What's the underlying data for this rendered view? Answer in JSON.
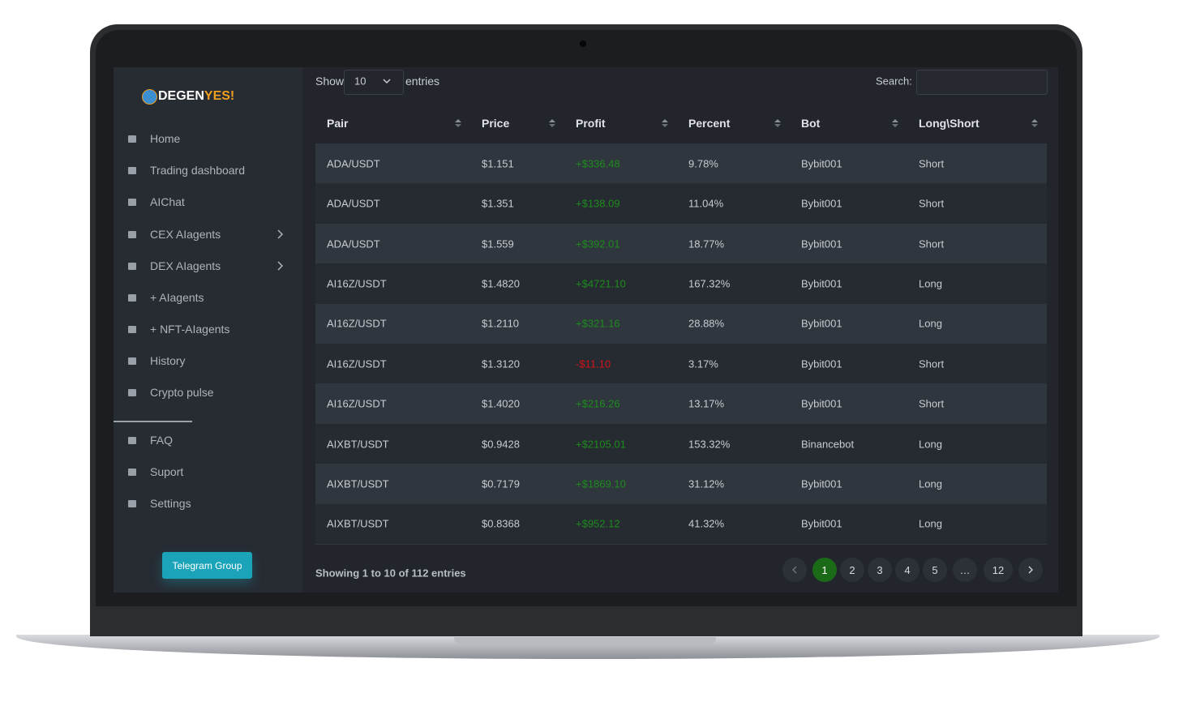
{
  "brand": {
    "part1": "DEGEN",
    "part2": "YES!"
  },
  "nav": [
    "Home",
    "Trading dashboard",
    "AIChat",
    "CEX AIagents",
    "DEX AIagents",
    "+ AIagents",
    "+ NFT-AIagents",
    "History",
    "Crypto pulse"
  ],
  "nav2": [
    "FAQ",
    "Suport",
    "Settings"
  ],
  "telegram": "Telegram Group",
  "controls": {
    "show": "Show",
    "page_size": "10",
    "entries": "entries",
    "search": "Search:"
  },
  "table": {
    "headers": [
      "Pair",
      "Price",
      "Profit",
      "Percent",
      "Bot",
      "Long\\Short"
    ],
    "rows": [
      [
        "ADA/USDT",
        "$1.151",
        "+$336.48",
        "9.78%",
        "Bybit001",
        "Short"
      ],
      [
        "ADA/USDT",
        "$1.351",
        "+$138.09",
        "11.04%",
        "Bybit001",
        "Short"
      ],
      [
        "ADA/USDT",
        "$1.559",
        "+$392.01",
        "18.77%",
        "Bybit001",
        "Short"
      ],
      [
        "AI16Z/USDT",
        "$1.4820",
        "+$4721.10",
        "167.32%",
        "Bybit001",
        "Long"
      ],
      [
        "AI16Z/USDT",
        "$1.2110",
        "+$321.16",
        "28.88%",
        "Bybit001",
        "Long"
      ],
      [
        "AI16Z/USDT",
        "$1.3120",
        "-$11.10",
        "3.17%",
        "Bybit001",
        "Short"
      ],
      [
        "AI16Z/USDT",
        "$1.4020",
        "+$216.26",
        "13.17%",
        "Bybit001",
        "Short"
      ],
      [
        "AIXBT/USDT",
        "$0.9428",
        "+$2105.01",
        "153.32%",
        "Binancebot",
        "Long"
      ],
      [
        "AIXBT/USDT",
        "$0.7179",
        "+$1869.10",
        "31.12%",
        "Bybit001",
        "Long"
      ],
      [
        "AIXBT/USDT",
        "$0.8368",
        "+$952.12",
        "41.32%",
        "Bybit001",
        "Long"
      ]
    ]
  },
  "footer": {
    "info": "Showing 1 to 10 of 112 entries",
    "pages": [
      "1",
      "2",
      "3",
      "4",
      "5",
      "…",
      "12"
    ]
  }
}
